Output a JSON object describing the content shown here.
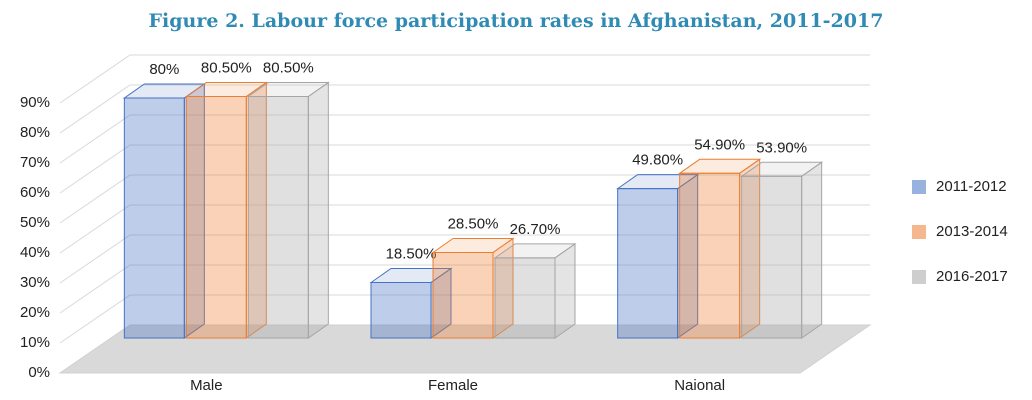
{
  "chart_data": {
    "type": "bar",
    "title": "Figure 2. Labour force participation rates in Afghanistan, 2011-2017",
    "categories": [
      "Male",
      "Female",
      "Naional"
    ],
    "series": [
      {
        "name": "2011-2012",
        "color": "#4472c4",
        "values": [
          80,
          18.5,
          49.8
        ],
        "value_labels": [
          "80%",
          "18.50%",
          "49.80%"
        ]
      },
      {
        "name": "2013-2014",
        "color": "#ed7d31",
        "values": [
          80.5,
          28.5,
          54.9
        ],
        "value_labels": [
          "80.50%",
          "28.50%",
          "54.90%"
        ]
      },
      {
        "name": "2016-2017",
        "color": "#a5a5a5",
        "values": [
          80.5,
          26.7,
          53.9
        ],
        "value_labels": [
          "80.50%",
          "26.70%",
          "53.90%"
        ]
      }
    ],
    "ylim": [
      0,
      90
    ],
    "yticks": [
      {
        "value": 0,
        "label": "0%"
      },
      {
        "value": 10,
        "label": "10%"
      },
      {
        "value": 20,
        "label": "20%"
      },
      {
        "value": 30,
        "label": "30%"
      },
      {
        "value": 40,
        "label": "40%"
      },
      {
        "value": 50,
        "label": "50%"
      },
      {
        "value": 60,
        "label": "60%"
      },
      {
        "value": 70,
        "label": "70%"
      },
      {
        "value": 80,
        "label": "80%"
      },
      {
        "value": 90,
        "label": "90%"
      }
    ],
    "grid": true,
    "legend": "right"
  }
}
